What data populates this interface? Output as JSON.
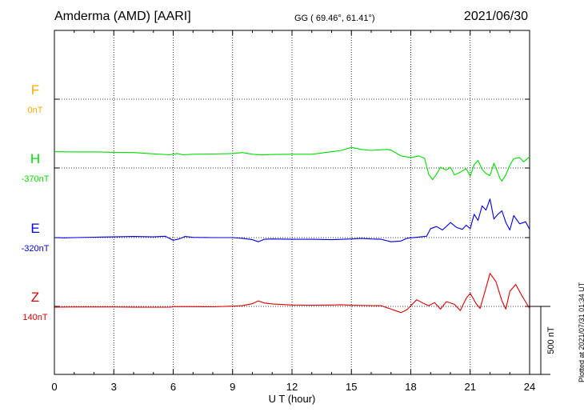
{
  "header": {
    "title": "Amderma (AMD)  [AARI]",
    "coords": "GG ( 69.46°,  61.41°)",
    "date": "2021/06/30"
  },
  "footer": {
    "plotted": "Plotted at 2021/07/31 01:34 UT"
  },
  "chart_data": {
    "type": "line",
    "title": "Amderma (AMD)  [AARI]",
    "xlabel": "U T (hour)",
    "ylabel": "",
    "xlim": [
      0,
      24
    ],
    "xticks": [
      0,
      3,
      6,
      9,
      12,
      15,
      18,
      21,
      24
    ],
    "grid": true,
    "scale_bar": {
      "label": "500 nT",
      "value_nT": 500
    },
    "series": [
      {
        "name": "F",
        "baseline": "0nT",
        "color": "#ffaa00",
        "points": []
      },
      {
        "name": "H",
        "baseline": "-370nT",
        "color": "#00dd00",
        "points": [
          [
            0,
            118
          ],
          [
            1,
            117
          ],
          [
            2,
            117
          ],
          [
            3,
            114
          ],
          [
            4,
            112
          ],
          [
            5,
            103
          ],
          [
            5.8,
            96
          ],
          [
            6.2,
            105
          ],
          [
            6.5,
            96
          ],
          [
            7,
            100
          ],
          [
            8,
            102
          ],
          [
            9,
            105
          ],
          [
            9.5,
            112
          ],
          [
            10,
            100
          ],
          [
            10.5,
            95
          ],
          [
            11,
            98
          ],
          [
            12,
            100
          ],
          [
            13,
            100
          ],
          [
            14,
            118
          ],
          [
            14.5,
            128
          ],
          [
            15,
            150
          ],
          [
            15.5,
            135
          ],
          [
            16,
            128
          ],
          [
            16.8,
            135
          ],
          [
            17,
            130
          ],
          [
            17.5,
            88
          ],
          [
            18,
            76
          ],
          [
            18.4,
            88
          ],
          [
            18.7,
            70
          ],
          [
            18.9,
            -45
          ],
          [
            19.1,
            -85
          ],
          [
            19.3,
            -45
          ],
          [
            19.5,
            5
          ],
          [
            19.8,
            -15
          ],
          [
            20,
            5
          ],
          [
            20.2,
            -50
          ],
          [
            20.5,
            -30
          ],
          [
            20.8,
            -5
          ],
          [
            21,
            -60
          ],
          [
            21.2,
            25
          ],
          [
            21.4,
            55
          ],
          [
            21.6,
            -10
          ],
          [
            21.8,
            -40
          ],
          [
            22,
            -55
          ],
          [
            22.2,
            35
          ],
          [
            22.4,
            -35
          ],
          [
            22.5,
            -75
          ],
          [
            22.6,
            -95
          ],
          [
            22.8,
            -50
          ],
          [
            23,
            20
          ],
          [
            23.2,
            68
          ],
          [
            23.5,
            75
          ],
          [
            23.7,
            45
          ],
          [
            24,
            82
          ]
        ]
      },
      {
        "name": "E",
        "baseline": "-320nT",
        "color": "#0000dd",
        "points": [
          [
            0,
            0
          ],
          [
            0.5,
            -2
          ],
          [
            1,
            0
          ],
          [
            2,
            3
          ],
          [
            3,
            5
          ],
          [
            4,
            8
          ],
          [
            5,
            5
          ],
          [
            5.6,
            10
          ],
          [
            5.8,
            -5
          ],
          [
            6,
            -20
          ],
          [
            6.3,
            -10
          ],
          [
            6.6,
            8
          ],
          [
            7,
            2
          ],
          [
            8,
            0
          ],
          [
            9,
            0
          ],
          [
            9.5,
            -5
          ],
          [
            10,
            -15
          ],
          [
            10.3,
            -30
          ],
          [
            10.6,
            -12
          ],
          [
            11,
            -10
          ],
          [
            12,
            -12
          ],
          [
            13,
            -12
          ],
          [
            14,
            -15
          ],
          [
            15,
            -10
          ],
          [
            15.5,
            -5
          ],
          [
            16,
            -10
          ],
          [
            16.5,
            -12
          ],
          [
            17,
            -30
          ],
          [
            17.5,
            -25
          ],
          [
            17.8,
            -5
          ],
          [
            18,
            -2
          ],
          [
            18.5,
            5
          ],
          [
            18.8,
            10
          ],
          [
            19,
            65
          ],
          [
            19.3,
            80
          ],
          [
            19.6,
            55
          ],
          [
            19.9,
            95
          ],
          [
            20,
            110
          ],
          [
            20.3,
            75
          ],
          [
            20.6,
            60
          ],
          [
            20.8,
            90
          ],
          [
            21,
            65
          ],
          [
            21.2,
            170
          ],
          [
            21.4,
            125
          ],
          [
            21.6,
            230
          ],
          [
            21.8,
            200
          ],
          [
            22,
            280
          ],
          [
            22.2,
            135
          ],
          [
            22.4,
            170
          ],
          [
            22.6,
            195
          ],
          [
            22.8,
            110
          ],
          [
            23,
            55
          ],
          [
            23.2,
            160
          ],
          [
            23.5,
            100
          ],
          [
            23.8,
            115
          ],
          [
            24,
            60
          ]
        ]
      },
      {
        "name": "Z",
        "baseline": "140nT",
        "color": "#dd0000",
        "points": [
          [
            0,
            -5
          ],
          [
            1,
            -4
          ],
          [
            2,
            -4
          ],
          [
            3,
            -4
          ],
          [
            4,
            -5
          ],
          [
            5,
            -6
          ],
          [
            5.9,
            -5
          ],
          [
            6,
            -2
          ],
          [
            7,
            -2
          ],
          [
            8,
            -3
          ],
          [
            9,
            2
          ],
          [
            9.5,
            5
          ],
          [
            10,
            20
          ],
          [
            10.3,
            40
          ],
          [
            10.6,
            25
          ],
          [
            11,
            18
          ],
          [
            12,
            10
          ],
          [
            13,
            8
          ],
          [
            14,
            10
          ],
          [
            14.5,
            12
          ],
          [
            15,
            8
          ],
          [
            16,
            6
          ],
          [
            16.5,
            5
          ],
          [
            17,
            -20
          ],
          [
            17.5,
            -45
          ],
          [
            17.8,
            -25
          ],
          [
            18,
            5
          ],
          [
            18.3,
            48
          ],
          [
            18.6,
            25
          ],
          [
            18.9,
            5
          ],
          [
            19.2,
            28
          ],
          [
            19.5,
            -20
          ],
          [
            19.8,
            35
          ],
          [
            20.2,
            15
          ],
          [
            20.5,
            -30
          ],
          [
            20.8,
            60
          ],
          [
            21,
            95
          ],
          [
            21.3,
            20
          ],
          [
            21.5,
            -15
          ],
          [
            21.8,
            135
          ],
          [
            22,
            240
          ],
          [
            22.3,
            180
          ],
          [
            22.6,
            40
          ],
          [
            22.8,
            -20
          ],
          [
            23,
            110
          ],
          [
            23.3,
            160
          ],
          [
            23.6,
            80
          ],
          [
            24,
            -15
          ]
        ]
      }
    ]
  }
}
